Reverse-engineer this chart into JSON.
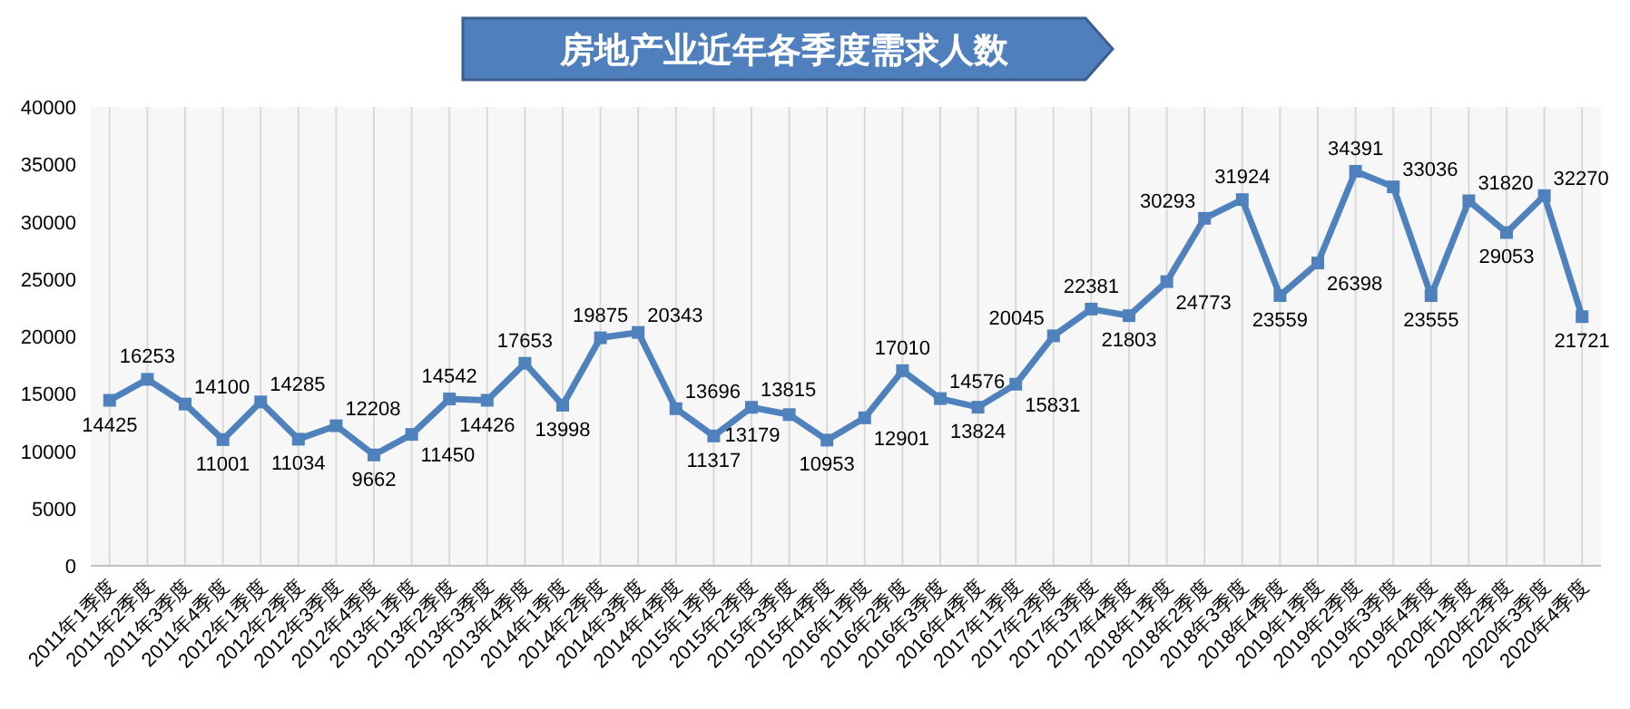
{
  "chart_data": {
    "type": "line",
    "title": "房地产业近年各季度需求人数",
    "categories": [
      "2011年1季度",
      "2011年2季度",
      "2011年3季度",
      "2011年4季度",
      "2012年1季度",
      "2012年2季度",
      "2012年3季度",
      "2012年4季度",
      "2013年1季度",
      "2013年2季度",
      "2013年3季度",
      "2013年4季度",
      "2014年1季度",
      "2014年2季度",
      "2014年3季度",
      "2014年4季度",
      "2015年1季度",
      "2015年2季度",
      "2015年3季度",
      "2015年4季度",
      "2016年1季度",
      "2016年2季度",
      "2016年3季度",
      "2016年4季度",
      "2017年1季度",
      "2017年2季度",
      "2017年3季度",
      "2017年4季度",
      "2018年1季度",
      "2018年2季度",
      "2018年3季度",
      "2018年4季度",
      "2019年1季度",
      "2019年2季度",
      "2019年3季度",
      "2019年4季度",
      "2020年1季度",
      "2020年2季度",
      "2020年3季度",
      "2020年4季度"
    ],
    "values": [
      14425,
      16253,
      14100,
      11001,
      14285,
      11034,
      12208,
      9662,
      11450,
      14542,
      14426,
      17653,
      13998,
      19875,
      20343,
      13696,
      11317,
      13815,
      13179,
      10953,
      12901,
      17010,
      14576,
      13824,
      15831,
      20045,
      22381,
      21803,
      24773,
      30293,
      31924,
      23559,
      26398,
      34391,
      33036,
      23555,
      31820,
      29053,
      32270,
      21721
    ],
    "color": "#4f81bd",
    "ylim": [
      0,
      40000
    ],
    "yticks": [
      0,
      5000,
      10000,
      15000,
      20000,
      25000,
      30000,
      35000,
      40000
    ],
    "grid": "x",
    "marker": "square",
    "data_labels": true
  }
}
